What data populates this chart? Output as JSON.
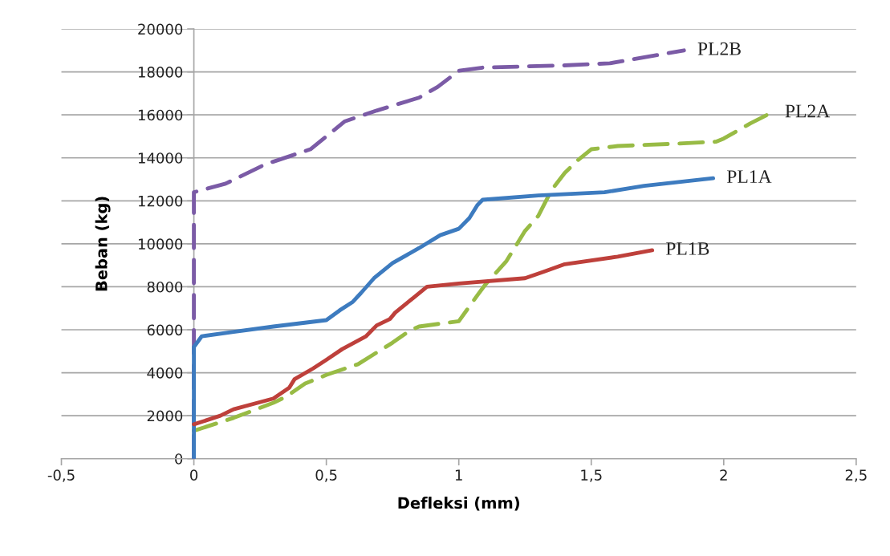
{
  "chart_data": {
    "type": "line",
    "xlabel": "Defleksi (mm)",
    "ylabel": "Beban (kg)",
    "xlim": [
      -0.5,
      2.5
    ],
    "xticks": [
      {
        "value": -0.5,
        "label": "-0,5"
      },
      0,
      {
        "value": 0.5,
        "label": "0,5"
      },
      1,
      {
        "value": 1.5,
        "label": "1,5"
      },
      2,
      {
        "value": 2.5,
        "label": "2,5"
      }
    ],
    "ylim": [
      0,
      20000
    ],
    "yticks": [
      0,
      2000,
      4000,
      6000,
      8000,
      10000,
      12000,
      14000,
      16000,
      18000,
      20000
    ],
    "grid": "y",
    "legend": false,
    "marker": "none",
    "series": [
      {
        "name": "PL2B",
        "color": "#7b5ba6",
        "line_style": "dashed",
        "x": [
          0,
          0,
          0.12,
          0.27,
          0.44,
          0.48,
          0.57,
          0.69,
          0.85,
          0.92,
          1.0,
          1.09,
          1.39,
          1.57,
          1.85
        ],
        "values": [
          0,
          12400,
          12800,
          13700,
          14400,
          14800,
          15700,
          16200,
          16800,
          17300,
          18050,
          18200,
          18300,
          18400,
          19000
        ]
      },
      {
        "name": "PL2A",
        "color": "#98bb45",
        "line_style": "dashed",
        "x": [
          0,
          0.15,
          0.3,
          0.35,
          0.42,
          0.5,
          0.62,
          0.75,
          0.82,
          0.85,
          1.0,
          1.07,
          1.1,
          1.18,
          1.25,
          1.3,
          1.35,
          1.4,
          1.45,
          1.5,
          1.6,
          1.8,
          1.97,
          2.0,
          2.1,
          2.18
        ],
        "values": [
          1300,
          1900,
          2600,
          2900,
          3500,
          3900,
          4400,
          5400,
          6000,
          6150,
          6400,
          7600,
          8100,
          9200,
          10600,
          11300,
          12500,
          13300,
          13900,
          14400,
          14550,
          14650,
          14750,
          14900,
          15600,
          16100
        ]
      },
      {
        "name": "PL1A",
        "color": "#3d7bbf",
        "line_style": "solid",
        "x": [
          0,
          0,
          0.03,
          0.15,
          0.3,
          0.5,
          0.55,
          0.6,
          0.63,
          0.68,
          0.75,
          0.85,
          0.93,
          1.0,
          1.04,
          1.07,
          1.09,
          1.3,
          1.55,
          1.7,
          1.96
        ],
        "values": [
          0,
          5200,
          5700,
          5900,
          6150,
          6450,
          6900,
          7300,
          7700,
          8400,
          9100,
          9800,
          10400,
          10700,
          11200,
          11800,
          12050,
          12250,
          12400,
          12700,
          13050
        ]
      },
      {
        "name": "PL1B",
        "color": "#be403b",
        "line_style": "solid",
        "x": [
          0,
          0.1,
          0.15,
          0.3,
          0.36,
          0.38,
          0.45,
          0.5,
          0.56,
          0.65,
          0.69,
          0.74,
          0.76,
          0.83,
          0.88,
          1.0,
          1.25,
          1.32,
          1.4,
          1.6,
          1.73
        ],
        "values": [
          1600,
          2000,
          2300,
          2800,
          3300,
          3700,
          4200,
          4600,
          5100,
          5700,
          6200,
          6500,
          6800,
          7500,
          8000,
          8150,
          8400,
          8700,
          9050,
          9400,
          9700
        ]
      }
    ]
  }
}
